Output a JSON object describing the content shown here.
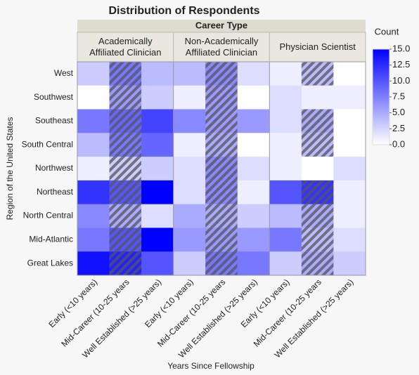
{
  "chart_data": {
    "type": "heatmap",
    "title": "Distribution of Respondents",
    "group_title": "Career Type",
    "groups": [
      "Academically\nAffiliated Clinician",
      "Non-Academically\nAffiliated Clinician",
      "Physician Scientist"
    ],
    "categories": [
      "Early (<10 years)",
      "Mid-Career (10-25 years",
      "Well Established (>25 years)",
      "Early (<10 years)",
      "Mid-Career (10-25 years",
      "Well Established (>25 years)",
      "Early (<10 years)",
      "Mid-Career (10-25 years",
      "Well Established (>25 years)"
    ],
    "rows": [
      "West",
      "Southwest",
      "Southeast",
      "South Central",
      "Northwest",
      "Northeast",
      "North Central",
      "Mid-Atlantic",
      "Great Lakes"
    ],
    "values": [
      [
        3,
        8,
        4,
        4,
        7,
        2,
        1,
        4,
        0
      ],
      [
        0,
        6,
        3,
        1,
        6,
        0,
        2,
        1,
        1
      ],
      [
        8,
        9,
        11,
        7,
        6,
        6,
        2,
        5,
        0
      ],
      [
        4,
        8,
        9,
        1,
        5,
        0,
        1,
        4,
        0
      ],
      [
        1,
        3,
        3,
        2,
        7,
        2,
        1,
        0,
        2
      ],
      [
        12,
        10,
        15,
        2,
        7,
        1,
        10,
        12,
        1
      ],
      [
        7,
        5,
        2,
        5,
        5,
        3,
        4,
        5,
        1
      ],
      [
        8,
        10,
        15,
        6,
        6,
        6,
        8,
        4,
        2
      ],
      [
        14,
        13,
        10,
        3,
        8,
        8,
        3,
        5,
        3
      ]
    ],
    "hatched": [
      [
        false,
        true,
        false,
        false,
        true,
        false,
        false,
        true,
        false
      ],
      [
        false,
        true,
        false,
        false,
        true,
        false,
        false,
        false,
        false
      ],
      [
        false,
        true,
        false,
        false,
        true,
        false,
        false,
        true,
        false
      ],
      [
        false,
        true,
        false,
        false,
        true,
        false,
        false,
        true,
        false
      ],
      [
        false,
        true,
        false,
        false,
        true,
        false,
        false,
        false,
        false
      ],
      [
        false,
        true,
        false,
        false,
        true,
        false,
        false,
        true,
        false
      ],
      [
        false,
        true,
        false,
        false,
        true,
        false,
        false,
        true,
        false
      ],
      [
        false,
        true,
        false,
        false,
        true,
        false,
        false,
        true,
        false
      ],
      [
        false,
        true,
        false,
        false,
        true,
        false,
        false,
        true,
        false
      ]
    ],
    "xlabel": "Years Since Fellowship",
    "ylabel": "Region of the United States",
    "legend_title": "Count",
    "zlim": [
      0,
      15
    ],
    "zticks": [
      {
        "value": 0,
        "label": "0.0"
      },
      {
        "value": 2.5,
        "label": "2.5"
      },
      {
        "value": 5,
        "label": "5.0"
      },
      {
        "value": 7.5,
        "label": "7.5"
      },
      {
        "value": 10,
        "label": "10.0"
      },
      {
        "value": 12.5,
        "label": "12.5"
      },
      {
        "value": 15,
        "label": "15.0"
      }
    ],
    "color_low": "#ffffff",
    "color_high": "#0000ff"
  }
}
